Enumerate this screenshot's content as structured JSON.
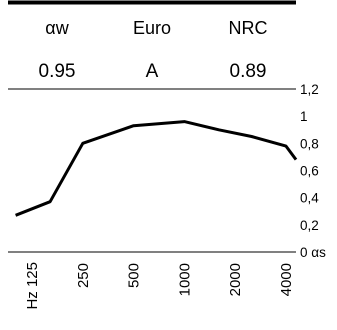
{
  "header": {
    "labels": [
      "αw",
      "Euro",
      "NRC"
    ],
    "values": [
      "0.95",
      "A",
      "0.89"
    ]
  },
  "chart_data": {
    "type": "line",
    "categories": [
      "Hz 125",
      "250",
      "500",
      "1000",
      "2000",
      "4000"
    ],
    "x": [
      125,
      250,
      500,
      1000,
      2000,
      4000
    ],
    "xscale": "log",
    "series": [
      {
        "x": [
          100,
          160,
          250,
          500,
          1000,
          1600,
          2500,
          4000,
          5000
        ],
        "values": [
          0.27,
          0.37,
          0.8,
          0.93,
          0.96,
          0.9,
          0.85,
          0.78,
          0.68
        ]
      }
    ],
    "ylabel": "αs",
    "yticks": [
      "1,2",
      "1",
      "0,8",
      "0,6",
      "0,4",
      "0,2",
      "0 αs"
    ],
    "ytick_values": [
      1.2,
      1.0,
      0.8,
      0.6,
      0.4,
      0.2,
      0
    ],
    "ylim": [
      0,
      1.2
    ],
    "grid": false,
    "colors": {
      "line": "#000000",
      "rule": "#000000"
    }
  }
}
